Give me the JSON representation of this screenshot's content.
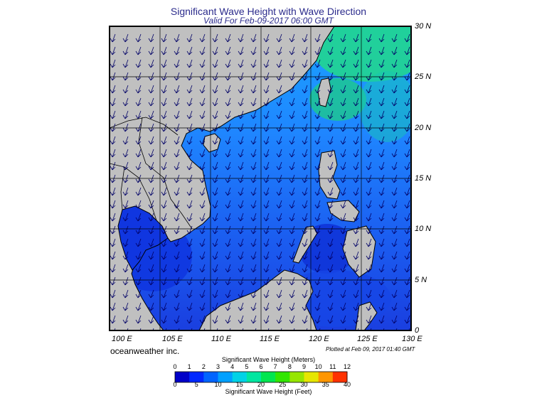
{
  "title": "Significant Wave Height with Wave Direction",
  "subtitle": "Valid For Feb-09-2017 06:00 GMT",
  "brand": "oceanweather inc.",
  "plotted": "Plotted at Feb 09, 2017 01:40 GMT",
  "lon_labels": [
    "100 E",
    "105 E",
    "110 E",
    "115 E",
    "120 E",
    "125 E",
    "130 E"
  ],
  "lat_labels": [
    "30 N",
    "25 N",
    "20 N",
    "15 N",
    "10 N",
    "5 N",
    "0"
  ],
  "colorbar": {
    "meters_title": "Significant Wave Height (Meters)",
    "feet_title": "Significant Wave Height (Feet)",
    "meters_ticks": [
      "0",
      "1",
      "2",
      "3",
      "4",
      "5",
      "6",
      "7",
      "8",
      "9",
      "10",
      "11",
      "12"
    ],
    "feet_ticks": [
      "0",
      "5",
      "10",
      "15",
      "20",
      "25",
      "30",
      "35",
      "40"
    ],
    "colors": [
      "#0000c8",
      "#0028ff",
      "#0064ff",
      "#00a0ff",
      "#00d2e6",
      "#00e6a0",
      "#00e650",
      "#32e600",
      "#96e600",
      "#e6e600",
      "#ff9600",
      "#ff3200"
    ]
  },
  "colors": {
    "land": "#c0c0c0",
    "sea_dark": "#1a3fe0",
    "sea_mid": "#2a6cf2",
    "sea_light": "#1fa8ff",
    "sea_green": "#1cd67a"
  }
}
